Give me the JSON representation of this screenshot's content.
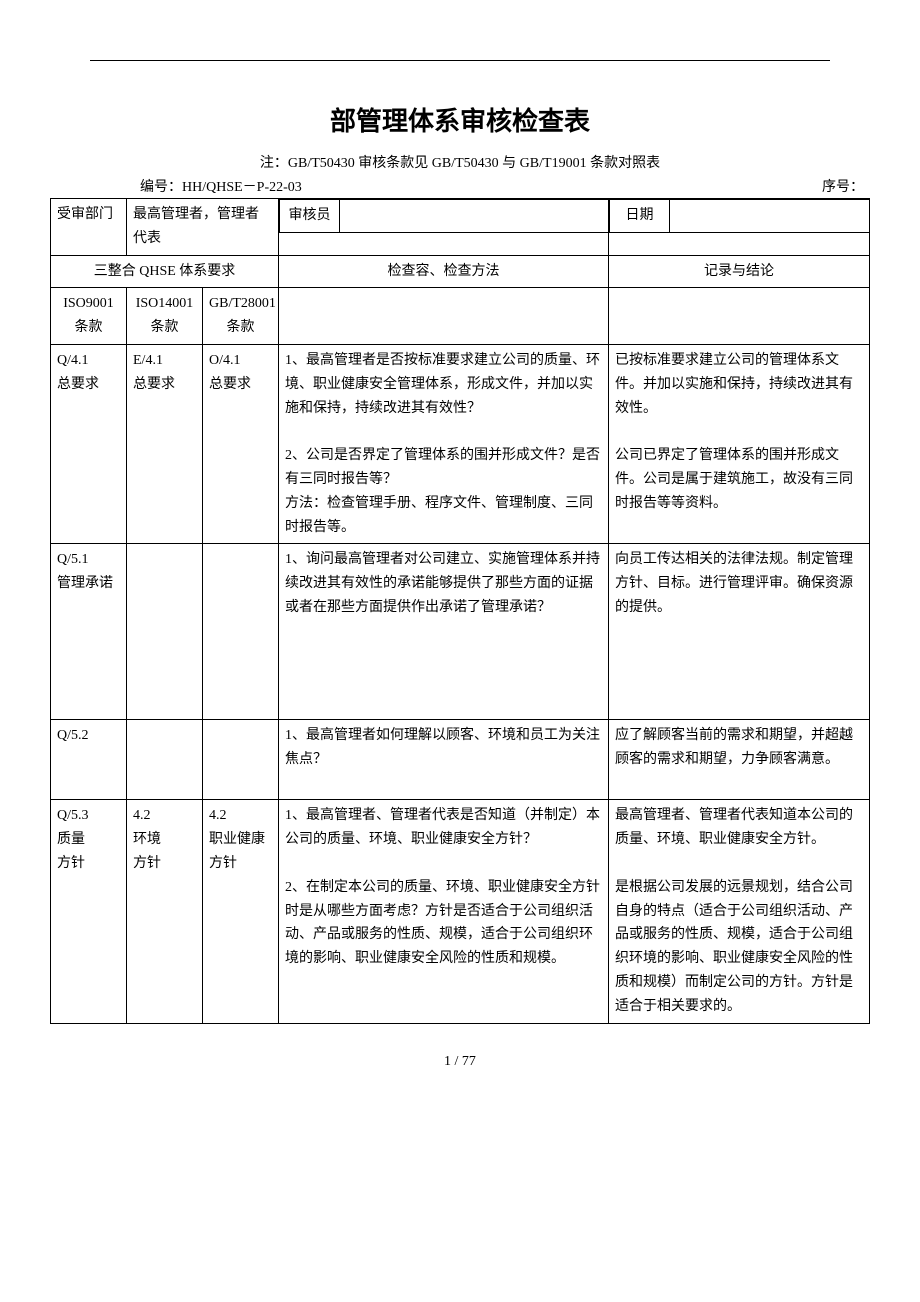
{
  "title": "部管理体系审核检查表",
  "note": "注：GB/T50430 审核条款见 GB/T50430 与 GB/T19001 条款对照表",
  "doc_no_label": "编号：",
  "doc_no": "HH/QHSE－P-22-03",
  "seq_label": "序号：",
  "header": {
    "dept_label": "受审部门",
    "dept_value": "最高管理者，管理者代表",
    "auditor_label": "审核员",
    "auditor_value": "",
    "date_label": "日期",
    "date_value": ""
  },
  "col_headers": {
    "group": "三整合 QHSE 体系要求",
    "check": "检查容、检查方法",
    "result": "记录与结论",
    "iso9001": "ISO9001\n条款",
    "iso14001": "ISO14001\n条款",
    "gbt28001": "GB/T28001\n条款"
  },
  "rows": [
    {
      "iso9001": "Q/4.1\n总要求",
      "iso14001": "E/4.1\n总要求",
      "gbt28001": "O/4.1\n总要求",
      "check": "1、最高管理者是否按标准要求建立公司的质量、环境、职业健康安全管理体系，形成文件，并加以实施和保持，持续改进其有效性？\n\n2、公司是否界定了管理体系的围并形成文件？是否有三同时报告等？\n方法：检查管理手册、程序文件、管理制度、三同时报告等。",
      "result": "已按标准要求建立公司的管理体系文件。并加以实施和保持，持续改进其有效性。\n\n公司已界定了管理体系的围并形成文件。公司是属于建筑施工，故没有三同时报告等等资料。"
    },
    {
      "iso9001": "Q/5.1\n管理承诺",
      "iso14001": "",
      "gbt28001": "",
      "check": "1、询问最高管理者对公司建立、实施管理体系并持续改进其有效性的承诺能够提供了那些方面的证据或者在那些方面提供作出承诺了管理承诺？\n\n\n\n\n",
      "result": "向员工传达相关的法律法规。制定管理方针、目标。进行管理评审。确保资源的提供。"
    },
    {
      "iso9001": "Q/5.2",
      "iso14001": "",
      "gbt28001": "",
      "check": "1、最高管理者如何理解以顾客、环境和员工为关注焦点？\n\n",
      "result": "应了解顾客当前的需求和期望，并超越顾客的需求和期望，力争顾客满意。"
    },
    {
      "iso9001": "Q/5.3\n质量\n方针",
      "iso14001": "4.2\n环境\n方针",
      "gbt28001": "4.2\n职业健康\n方针",
      "check": "1、最高管理者、管理者代表是否知道（并制定）本公司的质量、环境、职业健康安全方针？\n\n2、在制定本公司的质量、环境、职业健康安全方针时是从哪些方面考虑？方针是否适合于公司组织活动、产品或服务的性质、规模，适合于公司组织环境的影响、职业健康安全风险的性质和规模。",
      "result": "最高管理者、管理者代表知道本公司的质量、环境、职业健康安全方针。\n\n是根据公司发展的远景规划，结合公司自身的特点（适合于公司组织活动、产品或服务的性质、规模，适合于公司组织环境的影响、职业健康安全风险的性质和规模）而制定公司的方针。方针是适合于相关要求的。"
    }
  ],
  "page": "1 / 77"
}
